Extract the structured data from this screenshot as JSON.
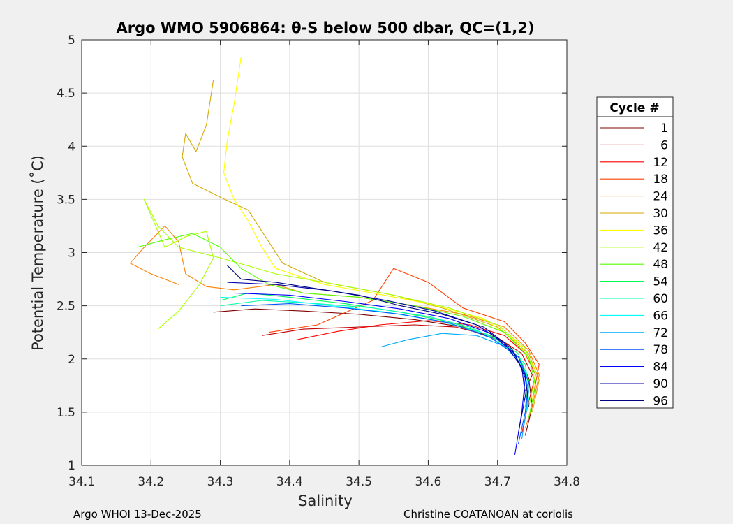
{
  "chart_data": {
    "type": "line",
    "title": "Argo WMO 5906864: θ-S below 500 dbar,  QC=(1,2)",
    "xlabel": "Salinity",
    "ylabel": "Potential Temperature (˚C)",
    "xlim": [
      34.1,
      34.8
    ],
    "ylim": [
      1,
      5
    ],
    "xticks": [
      34.1,
      34.2,
      34.3,
      34.4,
      34.5,
      34.6,
      34.7,
      34.8
    ],
    "xticklabels": [
      "34.1",
      "34.2",
      "34.3",
      "34.4",
      "34.5",
      "34.6",
      "34.7",
      "34.8"
    ],
    "yticks": [
      1,
      1.5,
      2,
      2.5,
      3,
      3.5,
      4,
      4.5,
      5
    ],
    "yticklabels": [
      "1",
      "1.5",
      "2",
      "2.5",
      "3",
      "3.5",
      "4",
      "4.5",
      "5"
    ],
    "grid": true,
    "legend_title": "Cycle #",
    "legend_position": "right-outside",
    "series": [
      {
        "name": "1",
        "color": "#7f0000",
        "points": [
          [
            34.29,
            2.44
          ],
          [
            34.35,
            2.47
          ],
          [
            34.42,
            2.45
          ],
          [
            34.5,
            2.42
          ],
          [
            34.58,
            2.37
          ],
          [
            34.65,
            2.3
          ],
          [
            34.7,
            2.18
          ],
          [
            34.73,
            2.02
          ],
          [
            34.745,
            1.82
          ],
          [
            34.75,
            1.55
          ],
          [
            34.74,
            1.28
          ]
        ]
      },
      {
        "name": "6",
        "color": "#c00000",
        "points": [
          [
            34.36,
            2.22
          ],
          [
            34.42,
            2.28
          ],
          [
            34.5,
            2.3
          ],
          [
            34.58,
            2.32
          ],
          [
            34.64,
            2.3
          ],
          [
            34.7,
            2.2
          ],
          [
            34.735,
            2.05
          ],
          [
            34.75,
            1.85
          ],
          [
            34.74,
            1.7
          ]
        ]
      },
      {
        "name": "12",
        "color": "#ff0000",
        "points": [
          [
            34.41,
            2.18
          ],
          [
            34.47,
            2.26
          ],
          [
            34.53,
            2.32
          ],
          [
            34.6,
            2.36
          ],
          [
            34.66,
            2.32
          ],
          [
            34.71,
            2.22
          ],
          [
            34.74,
            2.05
          ],
          [
            34.755,
            1.85
          ],
          [
            34.745,
            1.6
          ],
          [
            34.735,
            1.3
          ]
        ]
      },
      {
        "name": "18",
        "color": "#ff4000",
        "points": [
          [
            34.37,
            2.25
          ],
          [
            34.44,
            2.32
          ],
          [
            34.52,
            2.55
          ],
          [
            34.55,
            2.85
          ],
          [
            34.6,
            2.72
          ],
          [
            34.65,
            2.48
          ],
          [
            34.71,
            2.35
          ],
          [
            34.74,
            2.15
          ],
          [
            34.76,
            1.95
          ],
          [
            34.75,
            1.6
          ]
        ]
      },
      {
        "name": "24",
        "color": "#ff8000",
        "points": [
          [
            34.24,
            2.7
          ],
          [
            34.2,
            2.8
          ],
          [
            34.17,
            2.9
          ],
          [
            34.19,
            3.05
          ],
          [
            34.22,
            3.25
          ],
          [
            34.24,
            3.1
          ],
          [
            34.25,
            2.8
          ],
          [
            34.28,
            2.68
          ],
          [
            34.32,
            2.65
          ],
          [
            34.38,
            2.7
          ],
          [
            34.42,
            2.62
          ],
          [
            34.5,
            2.58
          ],
          [
            34.58,
            2.5
          ],
          [
            34.65,
            2.42
          ],
          [
            34.71,
            2.3
          ],
          [
            34.745,
            2.08
          ],
          [
            34.76,
            1.85
          ],
          [
            34.75,
            1.55
          ],
          [
            34.74,
            1.35
          ]
        ]
      },
      {
        "name": "30",
        "color": "#d4aa00",
        "points": [
          [
            34.29,
            4.62
          ],
          [
            34.28,
            4.2
          ],
          [
            34.265,
            3.95
          ],
          [
            34.25,
            4.12
          ],
          [
            34.245,
            3.9
          ],
          [
            34.26,
            3.65
          ],
          [
            34.3,
            3.52
          ],
          [
            34.34,
            3.4
          ],
          [
            34.37,
            3.1
          ],
          [
            34.39,
            2.9
          ],
          [
            34.45,
            2.72
          ],
          [
            34.55,
            2.6
          ],
          [
            34.62,
            2.48
          ],
          [
            34.7,
            2.3
          ],
          [
            34.745,
            2.05
          ],
          [
            34.76,
            1.8
          ],
          [
            34.75,
            1.5
          ]
        ]
      },
      {
        "name": "36",
        "color": "#ffff00",
        "points": [
          [
            34.33,
            4.84
          ],
          [
            34.32,
            4.4
          ],
          [
            34.31,
            4.05
          ],
          [
            34.305,
            3.75
          ],
          [
            34.32,
            3.5
          ],
          [
            34.34,
            3.3
          ],
          [
            34.36,
            3.05
          ],
          [
            34.38,
            2.85
          ],
          [
            34.45,
            2.7
          ],
          [
            34.52,
            2.62
          ],
          [
            34.6,
            2.52
          ],
          [
            34.68,
            2.38
          ],
          [
            34.73,
            2.15
          ],
          [
            34.755,
            1.9
          ],
          [
            34.75,
            1.6
          ]
        ]
      },
      {
        "name": "42",
        "color": "#aaff00",
        "points": [
          [
            34.21,
            2.28
          ],
          [
            34.24,
            2.45
          ],
          [
            34.27,
            2.7
          ],
          [
            34.29,
            2.95
          ],
          [
            34.28,
            3.2
          ],
          [
            34.25,
            3.15
          ],
          [
            34.22,
            3.05
          ],
          [
            34.2,
            3.35
          ],
          [
            34.19,
            3.5
          ],
          [
            34.21,
            3.25
          ],
          [
            34.24,
            3.05
          ],
          [
            34.3,
            2.95
          ],
          [
            34.38,
            2.8
          ],
          [
            34.45,
            2.72
          ],
          [
            34.55,
            2.6
          ],
          [
            34.63,
            2.48
          ],
          [
            34.7,
            2.32
          ],
          [
            34.74,
            2.1
          ],
          [
            34.755,
            1.85
          ],
          [
            34.745,
            1.55
          ]
        ]
      },
      {
        "name": "48",
        "color": "#55ff00",
        "points": [
          [
            34.18,
            3.05
          ],
          [
            34.22,
            3.12
          ],
          [
            34.26,
            3.18
          ],
          [
            34.3,
            3.05
          ],
          [
            34.33,
            2.85
          ],
          [
            34.37,
            2.7
          ],
          [
            34.42,
            2.62
          ],
          [
            34.5,
            2.58
          ],
          [
            34.58,
            2.5
          ],
          [
            34.65,
            2.4
          ],
          [
            34.71,
            2.25
          ],
          [
            34.745,
            2.02
          ],
          [
            34.755,
            1.75
          ],
          [
            34.745,
            1.45
          ]
        ]
      },
      {
        "name": "54",
        "color": "#00ff55",
        "points": [
          [
            34.3,
            2.55
          ],
          [
            34.34,
            2.62
          ],
          [
            34.4,
            2.58
          ],
          [
            34.48,
            2.52
          ],
          [
            34.56,
            2.44
          ],
          [
            34.63,
            2.35
          ],
          [
            34.69,
            2.22
          ],
          [
            34.73,
            2.05
          ],
          [
            34.745,
            1.8
          ],
          [
            34.74,
            1.55
          ]
        ]
      },
      {
        "name": "60",
        "color": "#00ffaa",
        "points": [
          [
            34.3,
            2.5
          ],
          [
            34.36,
            2.55
          ],
          [
            34.44,
            2.52
          ],
          [
            34.52,
            2.48
          ],
          [
            34.6,
            2.4
          ],
          [
            34.66,
            2.3
          ],
          [
            34.71,
            2.15
          ],
          [
            34.74,
            1.95
          ],
          [
            34.745,
            1.72
          ]
        ]
      },
      {
        "name": "66",
        "color": "#00ffff",
        "points": [
          [
            34.3,
            2.58
          ],
          [
            34.38,
            2.56
          ],
          [
            34.46,
            2.5
          ],
          [
            34.54,
            2.44
          ],
          [
            34.62,
            2.35
          ],
          [
            34.68,
            2.24
          ],
          [
            34.72,
            2.08
          ],
          [
            34.74,
            1.88
          ],
          [
            34.745,
            1.62
          ],
          [
            34.74,
            1.45
          ]
        ]
      },
      {
        "name": "72",
        "color": "#00aaff",
        "points": [
          [
            34.53,
            2.11
          ],
          [
            34.57,
            2.18
          ],
          [
            34.62,
            2.24
          ],
          [
            34.67,
            2.22
          ],
          [
            34.71,
            2.12
          ],
          [
            34.735,
            1.95
          ],
          [
            34.745,
            1.7
          ],
          [
            34.74,
            1.45
          ],
          [
            34.735,
            1.25
          ]
        ]
      },
      {
        "name": "78",
        "color": "#0055ff",
        "points": [
          [
            34.33,
            2.5
          ],
          [
            34.4,
            2.52
          ],
          [
            34.48,
            2.48
          ],
          [
            34.56,
            2.42
          ],
          [
            34.63,
            2.34
          ],
          [
            34.69,
            2.2
          ],
          [
            34.73,
            2.02
          ],
          [
            34.745,
            1.78
          ],
          [
            34.74,
            1.5
          ],
          [
            34.73,
            1.2
          ]
        ]
      },
      {
        "name": "84",
        "color": "#0000ff",
        "points": [
          [
            34.32,
            2.62
          ],
          [
            34.4,
            2.6
          ],
          [
            34.48,
            2.54
          ],
          [
            34.56,
            2.47
          ],
          [
            34.63,
            2.38
          ],
          [
            34.69,
            2.24
          ],
          [
            34.725,
            2.05
          ],
          [
            34.74,
            1.82
          ],
          [
            34.735,
            1.5
          ],
          [
            34.725,
            1.1
          ]
        ]
      },
      {
        "name": "90",
        "color": "#0000aa",
        "points": [
          [
            34.31,
            2.72
          ],
          [
            34.38,
            2.7
          ],
          [
            34.46,
            2.64
          ],
          [
            34.54,
            2.55
          ],
          [
            34.61,
            2.45
          ],
          [
            34.67,
            2.32
          ],
          [
            34.71,
            2.15
          ],
          [
            34.735,
            1.92
          ],
          [
            34.74,
            1.65
          ],
          [
            34.73,
            1.3
          ]
        ]
      },
      {
        "name": "96",
        "color": "#000080",
        "points": [
          [
            34.31,
            2.88
          ],
          [
            34.33,
            2.75
          ],
          [
            34.38,
            2.72
          ],
          [
            34.44,
            2.66
          ],
          [
            34.5,
            2.6
          ],
          [
            34.56,
            2.5
          ],
          [
            34.62,
            2.42
          ],
          [
            34.68,
            2.3
          ],
          [
            34.72,
            2.1
          ],
          [
            34.74,
            1.85
          ],
          [
            34.745,
            1.55
          ]
        ]
      }
    ]
  },
  "footer": {
    "left": "Argo WHOI 13-Dec-2025",
    "right": "Christine COATANOAN at coriolis"
  }
}
